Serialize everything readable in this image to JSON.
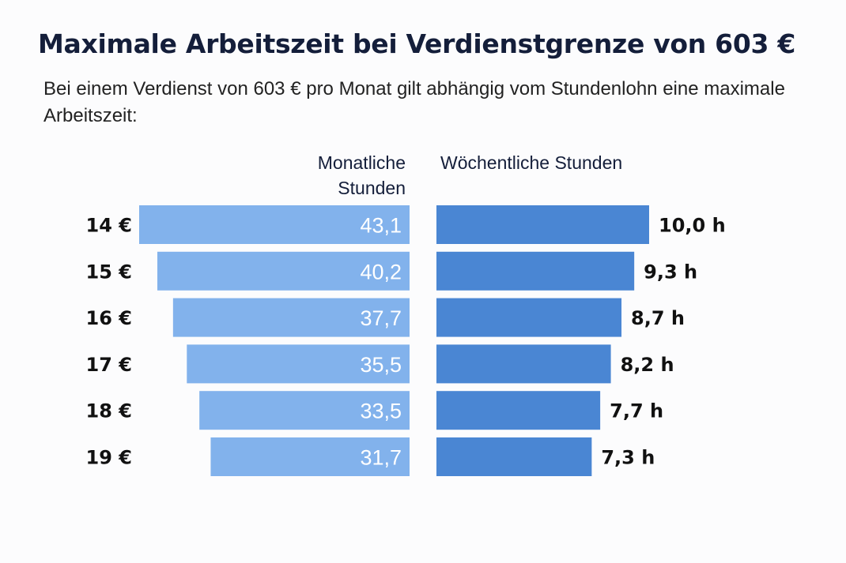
{
  "chart_data": {
    "type": "bar",
    "title": "Maximale Arbeitszeit bei Verdienstgrenze von 603 €",
    "subtitle": "Bei einem Verdienst von 603 € pro Monat gilt abhängig vom Stundenlohn eine maximale Arbeitszeit:",
    "categories": [
      "14 €",
      "15 €",
      "16 €",
      "17 €",
      "18 €",
      "19 €"
    ],
    "series": [
      {
        "name": "Monatliche Stunden",
        "values": [
          43.1,
          40.2,
          37.7,
          35.5,
          33.5,
          31.7
        ],
        "labels": [
          "43,1",
          "40,2",
          "37,7",
          "35,5",
          "33,5",
          "31,7"
        ],
        "color": "#82b2ec",
        "direction": "left"
      },
      {
        "name": "Wöchentliche Stunden",
        "values": [
          10.0,
          9.3,
          8.7,
          8.2,
          7.7,
          7.3
        ],
        "labels": [
          "10,0 h",
          "9,3 h",
          "8,7 h",
          "8,2 h",
          "7,7 h",
          "7,3 h"
        ],
        "color": "#4a86d3",
        "direction": "right"
      }
    ],
    "headers": {
      "left": [
        "Monatliche",
        "Stunden"
      ],
      "right": "Wöchentliche Stunden"
    },
    "legend": "none",
    "grid": false
  }
}
